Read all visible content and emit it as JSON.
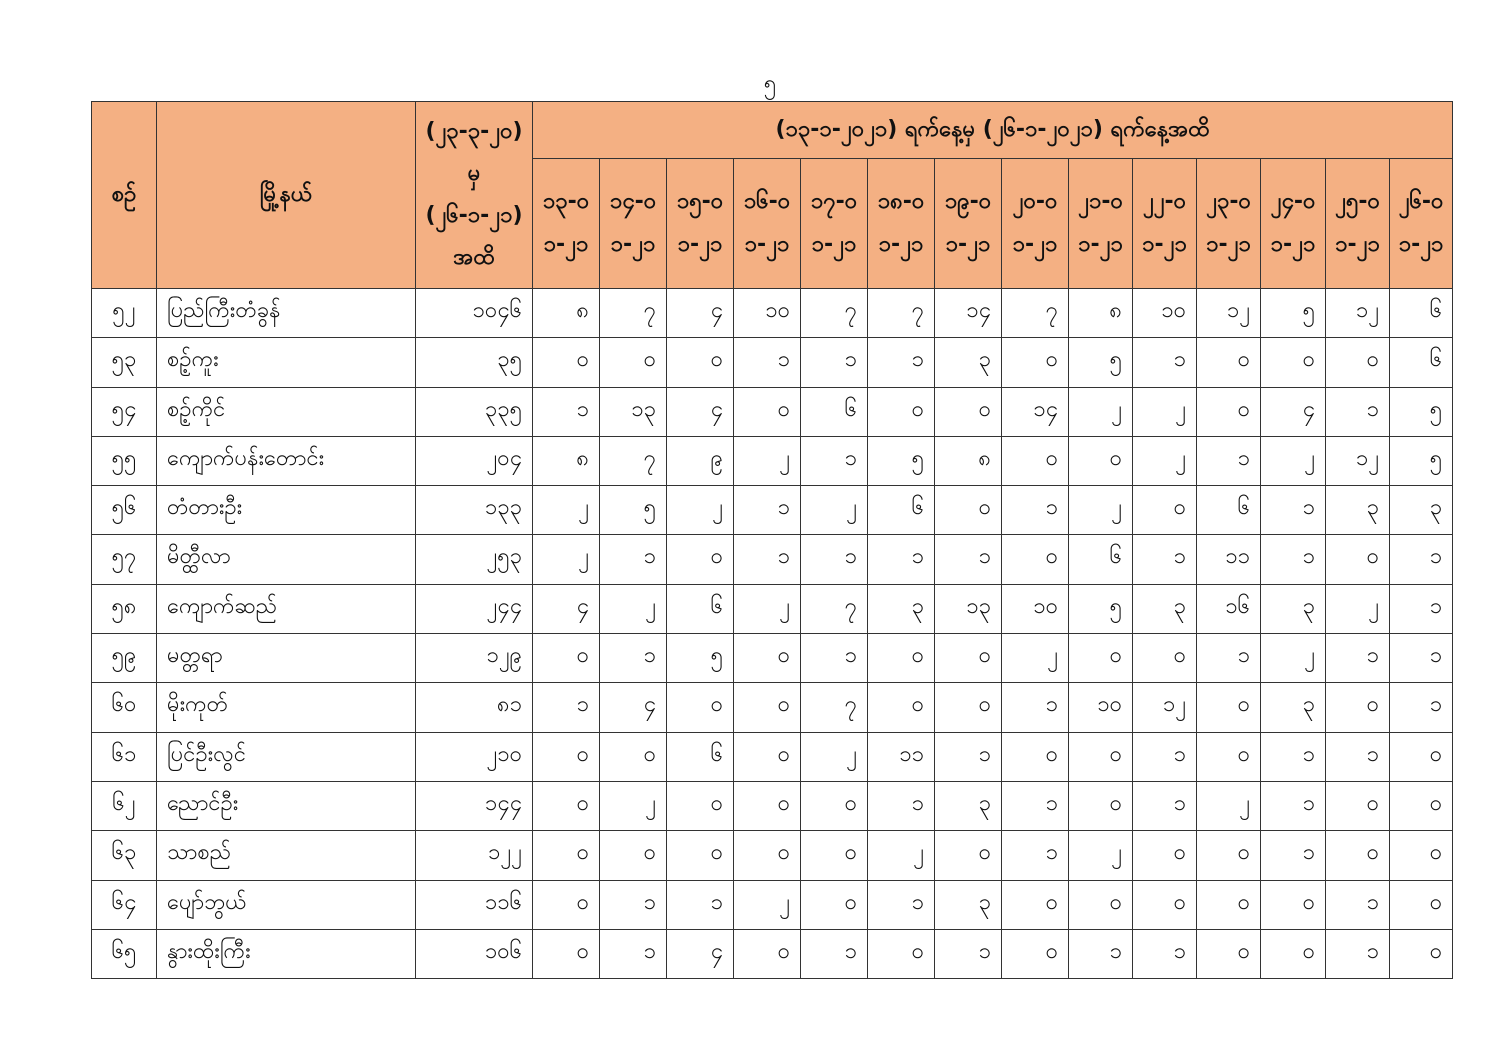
{
  "page_number": "၅",
  "table": {
    "headers": {
      "no": "စဉ်",
      "township": "မြို့နယ်",
      "cumulative": "(၂၃-၃-၂၀) မှ (၂၆-၁-၂၁) အထိ",
      "period": "(၁၃-၁-၂၀၂၁) ရက်နေ့မှ (၂၆-၁-၂၀၂၁) ရက်နေ့အထိ",
      "dates": [
        "၁၃-၀၁-၂၁",
        "၁၄-၀၁-၂၁",
        "၁၅-၀၁-၂၁",
        "၁၆-၀၁-၂၁",
        "၁၇-၀၁-၂၁",
        "၁၈-၀၁-၂၁",
        "၁၉-၀၁-၂၁",
        "၂၀-၀၁-၂၁",
        "၂၁-၀၁-၂၁",
        "၂၂-၀၁-၂၁",
        "၂၃-၀၁-၂၁",
        "၂၄-၀၁-၂၁",
        "၂၅-၀၁-၂၁",
        "၂၆-၀၁-၂၁"
      ]
    },
    "rows": [
      {
        "no": "၅၂",
        "township": "ပြည်ကြီးတံခွန်",
        "cumulative": "၁၀၄၆",
        "daily": [
          "၈",
          "၇",
          "၄",
          "၁၀",
          "၇",
          "၇",
          "၁၄",
          "၇",
          "၈",
          "၁၀",
          "၁၂",
          "၅",
          "၁၂",
          "၆"
        ]
      },
      {
        "no": "၅၃",
        "township": "စဉ့်ကူး",
        "cumulative": "၃၅",
        "daily": [
          "၀",
          "၀",
          "၀",
          "၁",
          "၁",
          "၁",
          "၃",
          "၀",
          "၅",
          "၁",
          "၀",
          "၀",
          "၀",
          "၆"
        ]
      },
      {
        "no": "၅၄",
        "township": "စဉ့်ကိုင်",
        "cumulative": "၃၃၅",
        "daily": [
          "၁",
          "၁၃",
          "၄",
          "၀",
          "၆",
          "၀",
          "၀",
          "၁၄",
          "၂",
          "၂",
          "၀",
          "၄",
          "၁",
          "၅"
        ]
      },
      {
        "no": "၅၅",
        "township": "ကျောက်ပန်းတောင်း",
        "cumulative": "၂၀၄",
        "daily": [
          "၈",
          "၇",
          "၉",
          "၂",
          "၁",
          "၅",
          "၈",
          "၀",
          "၀",
          "၂",
          "၁",
          "၂",
          "၁၂",
          "၅"
        ]
      },
      {
        "no": "၅၆",
        "township": "တံတားဦး",
        "cumulative": "၁၃၃",
        "daily": [
          "၂",
          "၅",
          "၂",
          "၁",
          "၂",
          "၆",
          "၀",
          "၁",
          "၂",
          "၀",
          "၆",
          "၁",
          "၃",
          "၃"
        ]
      },
      {
        "no": "၅၇",
        "township": "မိတ္ထီလာ",
        "cumulative": "၂၅၃",
        "daily": [
          "၂",
          "၁",
          "၀",
          "၁",
          "၁",
          "၁",
          "၁",
          "၀",
          "၆",
          "၁",
          "၁၁",
          "၁",
          "၀",
          "၁"
        ]
      },
      {
        "no": "၅၈",
        "township": "ကျောက်ဆည်",
        "cumulative": "၂၄၄",
        "daily": [
          "၄",
          "၂",
          "၆",
          "၂",
          "၇",
          "၃",
          "၁၃",
          "၁၀",
          "၅",
          "၃",
          "၁၆",
          "၃",
          "၂",
          "၁"
        ]
      },
      {
        "no": "၅၉",
        "township": "မတ္တရာ",
        "cumulative": "၁၂၉",
        "daily": [
          "၀",
          "၁",
          "၅",
          "၀",
          "၁",
          "၀",
          "၀",
          "၂",
          "၀",
          "၀",
          "၁",
          "၂",
          "၁",
          "၁"
        ]
      },
      {
        "no": "၆၀",
        "township": "မိုးကုတ်",
        "cumulative": "၈၁",
        "daily": [
          "၁",
          "၄",
          "၀",
          "၀",
          "၇",
          "၀",
          "၀",
          "၁",
          "၁၀",
          "၁၂",
          "၀",
          "၃",
          "၀",
          "၁"
        ]
      },
      {
        "no": "၆၁",
        "township": "ပြင်ဦးလွင်",
        "cumulative": "၂၁၀",
        "daily": [
          "၀",
          "၀",
          "၆",
          "၀",
          "၂",
          "၁၁",
          "၁",
          "၀",
          "၀",
          "၁",
          "၀",
          "၁",
          "၁",
          "၀"
        ]
      },
      {
        "no": "၆၂",
        "township": "ညောင်ဦး",
        "cumulative": "၁၄၄",
        "daily": [
          "၀",
          "၂",
          "၀",
          "၀",
          "၀",
          "၁",
          "၃",
          "၁",
          "၀",
          "၁",
          "၂",
          "၁",
          "၀",
          "၀"
        ]
      },
      {
        "no": "၆၃",
        "township": "သာစည်",
        "cumulative": "၁၂၂",
        "daily": [
          "၀",
          "၀",
          "၀",
          "၀",
          "၀",
          "၂",
          "၀",
          "၁",
          "၂",
          "၀",
          "၀",
          "၁",
          "၀",
          "၀"
        ]
      },
      {
        "no": "၆၄",
        "township": "ပျော်ဘွယ်",
        "cumulative": "၁၁၆",
        "daily": [
          "၀",
          "၁",
          "၁",
          "၂",
          "၀",
          "၁",
          "၃",
          "၀",
          "၀",
          "၀",
          "၀",
          "၀",
          "၁",
          "၀"
        ]
      },
      {
        "no": "၆၅",
        "township": "နွားထိုးကြီး",
        "cumulative": "၁၀၆",
        "daily": [
          "၀",
          "၁",
          "၄",
          "၀",
          "၁",
          "၀",
          "၁",
          "၀",
          "၁",
          "၁",
          "၀",
          "၀",
          "၁",
          "၀"
        ]
      }
    ]
  },
  "colors": {
    "header_bg": "#f4b083",
    "border": "#333333"
  }
}
